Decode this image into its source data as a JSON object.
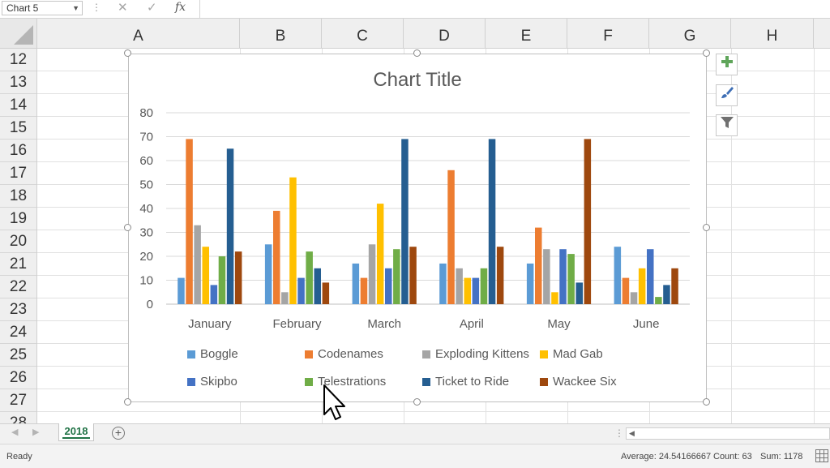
{
  "formula_bar": {
    "name_box": "Chart 5",
    "fx": "fx",
    "cancel_icon": "close-icon",
    "enter_icon": "check-icon"
  },
  "columns": [
    "A",
    "B",
    "C",
    "D",
    "E",
    "F",
    "G",
    "H"
  ],
  "rows": [
    "12",
    "13",
    "14",
    "15",
    "16",
    "17",
    "18",
    "19",
    "20",
    "21",
    "22",
    "23",
    "24",
    "25",
    "26",
    "27",
    "28"
  ],
  "colors": {
    "Boggle": "#5b9bd5",
    "Codenames": "#ed7d31",
    "Exploding Kittens": "#a5a5a5",
    "Mad Gab": "#ffc000",
    "Skipbo": "#4472c4",
    "Telestrations": "#70ad47",
    "Ticket to Ride": "#255e91",
    "Wackee Six": "#9e480e",
    "excel_green": "#217346"
  },
  "chart_data": {
    "type": "bar",
    "title": "Chart Title",
    "categories": [
      "January",
      "February",
      "March",
      "April",
      "May",
      "June"
    ],
    "ylim": [
      0,
      80
    ],
    "yticks": [
      "0",
      "10",
      "20",
      "30",
      "40",
      "50",
      "60",
      "70",
      "80"
    ],
    "grid": true,
    "legend_position": "bottom",
    "series": [
      {
        "name": "Boggle",
        "values": [
          11,
          25,
          17,
          17,
          17,
          24
        ]
      },
      {
        "name": "Codenames",
        "values": [
          69,
          39,
          11,
          56,
          32,
          11
        ]
      },
      {
        "name": "Exploding Kittens",
        "values": [
          33,
          5,
          25,
          15,
          23,
          5
        ]
      },
      {
        "name": "Mad Gab",
        "values": [
          24,
          53,
          42,
          11,
          5,
          15
        ]
      },
      {
        "name": "Skipbo",
        "values": [
          8,
          11,
          15,
          11,
          23,
          23
        ]
      },
      {
        "name": "Telestrations",
        "values": [
          20,
          22,
          23,
          15,
          21,
          3
        ]
      },
      {
        "name": "Ticket to Ride",
        "values": [
          65,
          15,
          69,
          69,
          9,
          8
        ]
      },
      {
        "name": "Wackee Six",
        "values": [
          22,
          9,
          24,
          24,
          69,
          15
        ]
      }
    ]
  },
  "chart_buttons": {
    "elements": "plus-icon",
    "styles": "brush-icon",
    "filters": "filter-icon"
  },
  "sheet_tabs": [
    {
      "label": "2018",
      "active": true
    }
  ],
  "status_bar": {
    "ready": "Ready",
    "average": "Average: 24.54166667",
    "count": "Count: 63",
    "sum": "Sum: 1178"
  }
}
